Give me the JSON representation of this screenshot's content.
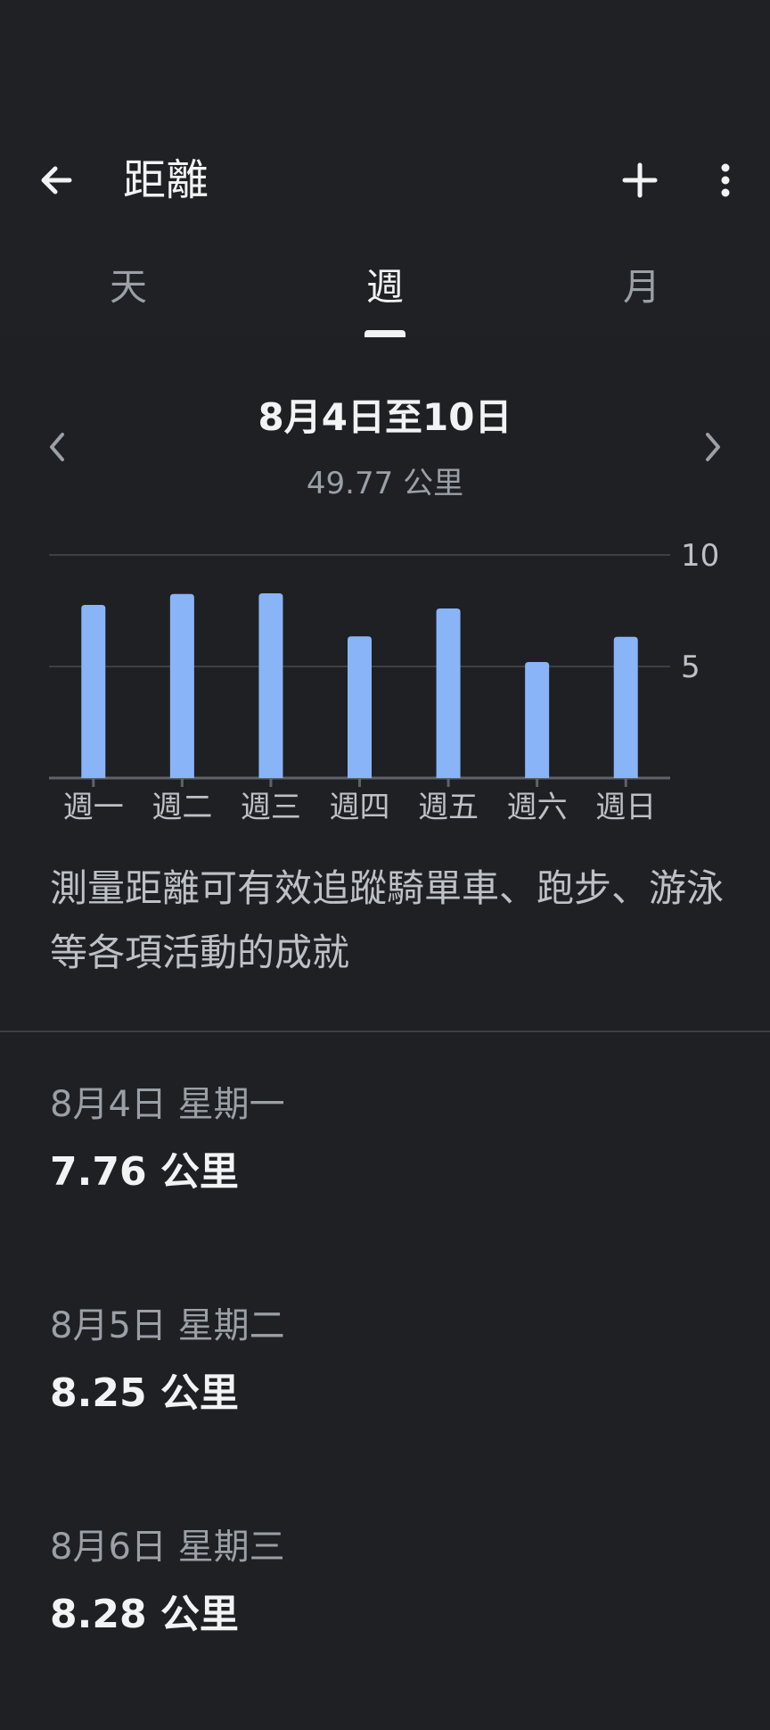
{
  "appbar": {
    "title": "距離",
    "back_icon": "arrow-left-icon",
    "add_icon": "plus-icon",
    "more_icon": "more-vertical-icon"
  },
  "tabs": [
    {
      "label": "天",
      "active": false
    },
    {
      "label": "週",
      "active": true
    },
    {
      "label": "月",
      "active": false
    }
  ],
  "range": {
    "title": "8月4日至10日",
    "total": "49.77 公里",
    "prev_icon": "chevron-left-icon",
    "next_icon": "chevron-right-icon"
  },
  "chart_data": {
    "type": "bar",
    "categories": [
      "週一",
      "週二",
      "週三",
      "週四",
      "週五",
      "週六",
      "週日"
    ],
    "values": [
      7.76,
      8.25,
      8.28,
      6.35,
      7.6,
      5.2,
      6.33
    ],
    "yticks": [
      "5",
      "10"
    ],
    "ylim": [
      0,
      10
    ],
    "grid": true,
    "color": "#8ab4f8"
  },
  "description": "測量距離可有效追蹤騎單車、跑步、游泳等各項活動的成就",
  "entries": [
    {
      "date": "8月4日 星期一",
      "value": "7.76 公里"
    },
    {
      "date": "8月5日 星期二",
      "value": "8.25 公里"
    },
    {
      "date": "8月6日 星期三",
      "value": "8.28 公里"
    }
  ]
}
